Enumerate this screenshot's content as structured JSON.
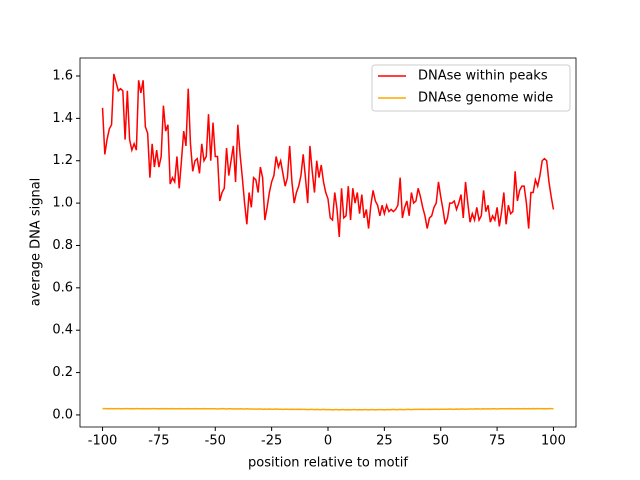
{
  "chart_data": {
    "type": "line",
    "xlabel": "position relative to motif",
    "ylabel": "average DNA signal",
    "xlim": [
      -110,
      110
    ],
    "ylim": [
      -0.057,
      1.685
    ],
    "xticks": [
      -100,
      -75,
      -50,
      -25,
      0,
      25,
      50,
      75,
      100
    ],
    "yticks": [
      {
        "value": 0,
        "label": "0.0"
      },
      0.2,
      0.4,
      0.6,
      0.8,
      {
        "value": 1,
        "label": "1.0"
      },
      1.2,
      1.4,
      1.6
    ],
    "legend": "upper right",
    "x": [
      -100,
      -99,
      -98,
      -97,
      -96,
      -95,
      -94,
      -93,
      -92,
      -91,
      -90,
      -89,
      -88,
      -87,
      -86,
      -85,
      -84,
      -83,
      -82,
      -81,
      -80,
      -79,
      -78,
      -77,
      -76,
      -75,
      -74,
      -73,
      -72,
      -71,
      -70,
      -69,
      -68,
      -67,
      -66,
      -65,
      -64,
      -63,
      -62,
      -61,
      -60,
      -59,
      -58,
      -57,
      -56,
      -55,
      -54,
      -53,
      -52,
      -51,
      -50,
      -49,
      -48,
      -47,
      -46,
      -45,
      -44,
      -43,
      -42,
      -41,
      -40,
      -39,
      -38,
      -37,
      -36,
      -35,
      -34,
      -33,
      -32,
      -31,
      -30,
      -29,
      -28,
      -27,
      -26,
      -25,
      -24,
      -23,
      -22,
      -21,
      -20,
      -19,
      -18,
      -17,
      -16,
      -15,
      -14,
      -13,
      -12,
      -11,
      -10,
      -9,
      -8,
      -7,
      -6,
      -5,
      -4,
      -3,
      -2,
      -1,
      0,
      1,
      2,
      3,
      4,
      5,
      6,
      7,
      8,
      9,
      10,
      11,
      12,
      13,
      14,
      15,
      16,
      17,
      18,
      19,
      20,
      21,
      22,
      23,
      24,
      25,
      26,
      27,
      28,
      29,
      30,
      31,
      32,
      33,
      34,
      35,
      36,
      37,
      38,
      39,
      40,
      41,
      42,
      43,
      44,
      45,
      46,
      47,
      48,
      49,
      50,
      51,
      52,
      53,
      54,
      55,
      56,
      57,
      58,
      59,
      60,
      61,
      62,
      63,
      64,
      65,
      66,
      67,
      68,
      69,
      70,
      71,
      72,
      73,
      74,
      75,
      76,
      77,
      78,
      79,
      80,
      81,
      82,
      83,
      84,
      85,
      86,
      87,
      88,
      89,
      90,
      91,
      92,
      93,
      94,
      95,
      96,
      97,
      98,
      99,
      100
    ],
    "series": [
      {
        "name": "DNAse within peaks",
        "color": "#ff0000",
        "values": [
          1.45,
          1.23,
          1.3,
          1.35,
          1.37,
          1.61,
          1.57,
          1.53,
          1.54,
          1.53,
          1.3,
          1.53,
          1.3,
          1.25,
          1.28,
          1.25,
          1.58,
          1.52,
          1.58,
          1.36,
          1.33,
          1.12,
          1.28,
          1.17,
          1.25,
          1.17,
          1.22,
          1.46,
          1.34,
          1.37,
          1.09,
          1.12,
          1.1,
          1.22,
          1.07,
          1.2,
          1.34,
          1.27,
          1.54,
          1.28,
          1.15,
          1.2,
          1.21,
          1.14,
          1.28,
          1.2,
          1.22,
          1.42,
          1.2,
          1.38,
          1.22,
          1.22,
          1.01,
          1.05,
          1.07,
          1.26,
          1.13,
          1.2,
          1.27,
          1.1,
          1.37,
          1.23,
          1.12,
          1.0,
          0.9,
          1.05,
          0.98,
          1.12,
          1.11,
          1.05,
          1.17,
          1.12,
          0.92,
          0.98,
          1.05,
          1.1,
          1.13,
          1.22,
          1.17,
          1.2,
          1.14,
          1.08,
          1.12,
          1.27,
          1.1,
          1.0,
          1.05,
          1.08,
          1.13,
          1.23,
          1.12,
          1.0,
          1.27,
          1.15,
          1.05,
          1.2,
          1.12,
          1.18,
          1.1,
          1.05,
          1.02,
          0.93,
          0.92,
          1.05,
          0.97,
          0.84,
          1.07,
          0.93,
          0.94,
          1.08,
          0.92,
          1.07,
          1.0,
          1.05,
          0.95,
          1.04,
          0.93,
          0.97,
          0.88,
          0.99,
          1.06,
          1.01,
          0.99,
          0.94,
          0.99,
          0.95,
          0.99,
          0.96,
          0.97,
          0.96,
          0.97,
          0.99,
          1.12,
          0.93,
          0.98,
          1.01,
          0.94,
          1.05,
          1.0,
          1.01,
          1.07,
          1.03,
          0.98,
          0.94,
          0.88,
          0.93,
          0.94,
          0.98,
          1.0,
          1.1,
          1.03,
          0.97,
          0.9,
          0.93,
          1.0,
          1.0,
          1.01,
          0.97,
          1.0,
          1.04,
          0.93,
          1.1,
          1.0,
          0.91,
          0.95,
          0.92,
          0.98,
          0.92,
          0.94,
          1.06,
          0.96,
          0.99,
          0.91,
          0.94,
          0.92,
          0.98,
          0.89,
          0.96,
          1.05,
          0.9,
          0.99,
          0.95,
          0.96,
          1.15,
          1.01,
          1.06,
          1.08,
          1.08,
          1.0,
          0.88,
          1.05,
          1.05,
          1.11,
          1.08,
          1.13,
          1.2,
          1.21,
          1.2,
          1.1,
          1.03,
          0.97
        ]
      },
      {
        "name": "DNAse genome wide",
        "color": "#ffa500",
        "values": [
          0.03,
          0.03,
          0.029,
          0.03,
          0.03,
          0.029,
          0.03,
          0.03,
          0.029,
          0.029,
          0.03,
          0.03,
          0.029,
          0.03,
          0.029,
          0.03,
          0.03,
          0.029,
          0.03,
          0.029,
          0.03,
          0.029,
          0.03,
          0.03,
          0.029,
          0.029,
          0.03,
          0.029,
          0.03,
          0.029,
          0.029,
          0.03,
          0.029,
          0.029,
          0.03,
          0.029,
          0.029,
          0.029,
          0.03,
          0.029,
          0.029,
          0.03,
          0.029,
          0.029,
          0.029,
          0.03,
          0.029,
          0.029,
          0.029,
          0.029,
          0.029,
          0.028,
          0.029,
          0.03,
          0.029,
          0.028,
          0.029,
          0.029,
          0.028,
          0.029,
          0.028,
          0.029,
          0.028,
          0.028,
          0.029,
          0.028,
          0.028,
          0.028,
          0.027,
          0.028,
          0.028,
          0.027,
          0.028,
          0.027,
          0.028,
          0.027,
          0.027,
          0.028,
          0.027,
          0.027,
          0.026,
          0.027,
          0.027,
          0.026,
          0.027,
          0.026,
          0.026,
          0.027,
          0.026,
          0.026,
          0.026,
          0.025,
          0.026,
          0.026,
          0.025,
          0.026,
          0.025,
          0.025,
          0.026,
          0.025,
          0.025,
          0.025,
          0.024,
          0.025,
          0.025,
          0.024,
          0.025,
          0.025,
          0.024,
          0.025,
          0.024,
          0.025,
          0.025,
          0.024,
          0.025,
          0.024,
          0.025,
          0.025,
          0.024,
          0.025,
          0.025,
          0.024,
          0.025,
          0.025,
          0.025,
          0.024,
          0.025,
          0.025,
          0.025,
          0.026,
          0.025,
          0.025,
          0.026,
          0.025,
          0.025,
          0.026,
          0.026,
          0.025,
          0.026,
          0.026,
          0.026,
          0.026,
          0.027,
          0.026,
          0.026,
          0.027,
          0.026,
          0.027,
          0.027,
          0.026,
          0.027,
          0.027,
          0.027,
          0.027,
          0.028,
          0.027,
          0.027,
          0.028,
          0.027,
          0.028,
          0.028,
          0.027,
          0.028,
          0.028,
          0.028,
          0.028,
          0.029,
          0.028,
          0.028,
          0.029,
          0.028,
          0.029,
          0.028,
          0.029,
          0.029,
          0.028,
          0.029,
          0.029,
          0.029,
          0.029,
          0.029,
          0.03,
          0.029,
          0.029,
          0.03,
          0.029,
          0.029,
          0.03,
          0.029,
          0.03,
          0.029,
          0.03,
          0.029,
          0.03,
          0.03,
          0.029,
          0.03,
          0.029,
          0.03,
          0.03,
          0.029
        ]
      }
    ]
  }
}
